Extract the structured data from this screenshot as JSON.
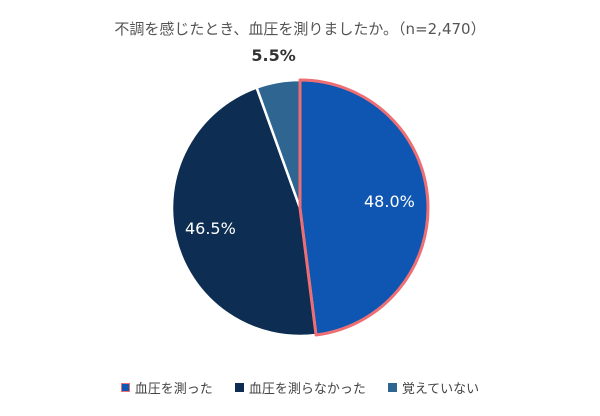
{
  "chart_data": {
    "type": "pie",
    "title": "不調を感じたとき、血圧を測りましたか。（n=2,470）",
    "categories": [
      "血圧を測った",
      "血圧を測らなかった",
      "覚えていない"
    ],
    "values": [
      48.0,
      46.5,
      5.5
    ],
    "data_labels": [
      "48.0%",
      "46.5%",
      "5.5%"
    ],
    "colors": [
      "#0f56b3",
      "#0d2d52",
      "#2e6591"
    ],
    "highlight_color": "#ee6f73",
    "highlight_index": 0,
    "legend_position": "bottom"
  }
}
